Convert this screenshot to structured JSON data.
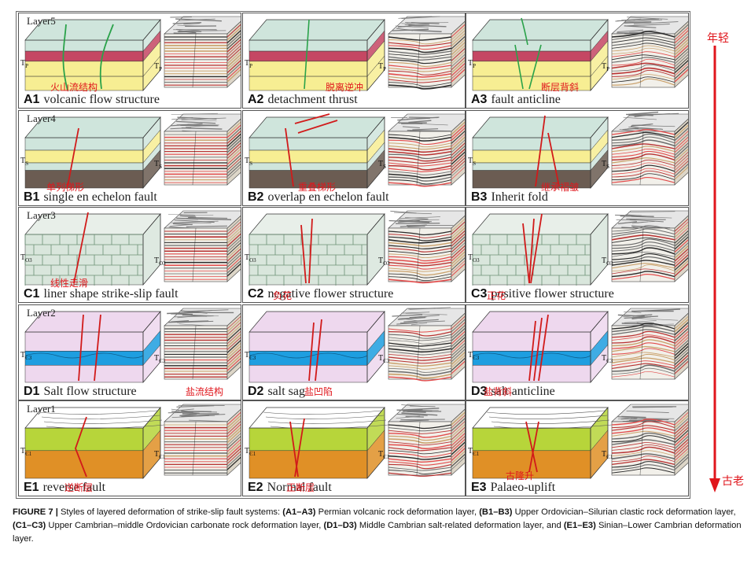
{
  "age_axis": {
    "young": "年轻",
    "old": "古老",
    "color": "#e0161c"
  },
  "layers": [
    {
      "label": "Layer5",
      "tag": "TP"
    },
    {
      "label": "Layer4",
      "tag": "TS"
    },
    {
      "label": "Layer3",
      "tag": "TO3"
    },
    {
      "label": "Layer2",
      "tag": "TЄ3"
    },
    {
      "label": "Layer1",
      "tag": "TЄ1"
    }
  ],
  "tags": {
    "TP": {
      "main": "T",
      "sub": "P"
    },
    "TS": {
      "main": "T",
      "sub": "S"
    },
    "TO3": {
      "main": "T",
      "sub": "O3"
    },
    "TC3": {
      "main": "T",
      "sub": "Є3"
    },
    "TC1": {
      "main": "T",
      "sub": "Є1"
    }
  },
  "panels": [
    {
      "id": "A1",
      "title": "volcanic flow structure",
      "cn": "火山流结构"
    },
    {
      "id": "A2",
      "title": "detachment thrust",
      "cn": "脱离逆冲"
    },
    {
      "id": "A3",
      "title": "fault anticline",
      "cn": "断层背斜"
    },
    {
      "id": "B1",
      "title": "single en echelon fault",
      "cn": "单列梯形"
    },
    {
      "id": "B2",
      "title": "overlap en echelon fault",
      "cn": "重叠梯形"
    },
    {
      "id": "B3",
      "title": "Inherit  fold",
      "cn": "继承褶皱"
    },
    {
      "id": "C1",
      "title": "liner shape strike-slip fault",
      "cn": "线性走滑"
    },
    {
      "id": "C2",
      "title": "negative flower structure",
      "cn": "负花"
    },
    {
      "id": "C3",
      "title": "positive flower structure",
      "cn": "正花"
    },
    {
      "id": "D1",
      "title": "Salt flow structure",
      "cn": "盐流结构"
    },
    {
      "id": "D2",
      "title": "salt  sag",
      "cn": "盐凹陷"
    },
    {
      "id": "D3",
      "title": "salt  anticline",
      "cn": "盐背斜"
    },
    {
      "id": "E1",
      "title": "reverse fault",
      "cn": "逆断层"
    },
    {
      "id": "E2",
      "title": "Normal fault",
      "cn": "正断层"
    },
    {
      "id": "E3",
      "title": "Palaeo-uplift",
      "cn": "古隆升"
    }
  ],
  "caption": {
    "lead": "FIGURE 7 |",
    "t0": " Styles of layered deformation of strike-slip fault systems: ",
    "r1": "(A1–A3)",
    "t1": " Permian volcanic rock deformation layer, ",
    "r2": "(B1–B3)",
    "t2": " Upper Ordovician–Silurian clastic rock deformation layer, ",
    "r3": "(C1–C3)",
    "t3": " Upper Cambrian–middle Ordovician carbonate rock deformation layer, ",
    "r4": "(D1–D3)",
    "t4": " Middle Cambrian salt-related deformation layer, and ",
    "r5": "(E1–E3)",
    "t5": " Sinian–Lower Cambrian deformation layer."
  },
  "colors": {
    "teal": "#cfe5dc",
    "yellow": "#f7ee93",
    "red_band": "#c54763",
    "brown": "#6b5c52",
    "carbonate": "#d9e6dc",
    "salt_pink": "#eed8ee",
    "salt_blue": "#1e9ee0",
    "lime": "#b7d53a",
    "orange": "#e09026",
    "fault": "#d11a1a",
    "green_line": "#2aa24a"
  }
}
